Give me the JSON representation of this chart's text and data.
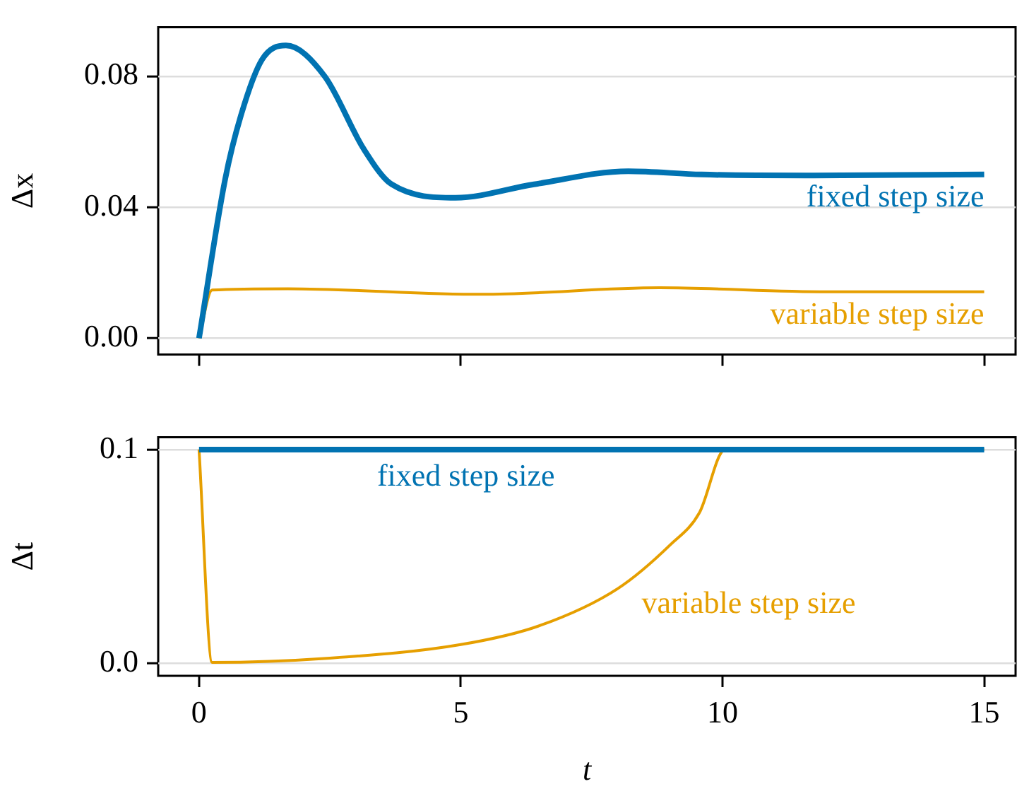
{
  "chart_data": [
    {
      "type": "line",
      "ylabel": "Δx",
      "xlim": [
        -0.78,
        15.6
      ],
      "ylim": [
        -0.005,
        0.095
      ],
      "xticks": [
        0,
        5,
        10,
        15
      ],
      "yticks": [
        {
          "value": 0,
          "label": "0.00"
        },
        {
          "value": 0.04,
          "label": "0.04"
        },
        {
          "value": 0.08,
          "label": "0.08"
        }
      ],
      "tick_labels": "y",
      "grid": "y",
      "legend": false,
      "marker": "none",
      "line_style": "solid",
      "series": [
        {
          "name": "fixed step size",
          "color": "#0173b2",
          "x": [
            0,
            0.5,
            0.8,
            1.2,
            1.66,
            2.4,
            3.15,
            3.68,
            4.9,
            6.4,
            8.2,
            9.6,
            11.6,
            15
          ],
          "values": [
            0,
            0.0486,
            0.068,
            0.085,
            0.0894,
            0.08,
            0.0577,
            0.047,
            0.0429,
            0.047,
            0.051,
            0.05,
            0.0497,
            0.05
          ]
        },
        {
          "name": "variable step size",
          "color": "#e69f00",
          "x": [
            0,
            0.25,
            1.7,
            5.4,
            8.8,
            12,
            15
          ],
          "values": [
            0,
            0.0147,
            0.0151,
            0.0134,
            0.0154,
            0.0142,
            0.0142
          ]
        }
      ]
    },
    {
      "type": "line",
      "xlabel": "t",
      "ylabel": "Δt",
      "xlim": [
        -0.78,
        15.6
      ],
      "ylim": [
        -0.0058,
        0.1058
      ],
      "xticks": [
        0,
        5,
        10,
        15
      ],
      "yticks": [
        {
          "value": 0,
          "label": "0.0"
        },
        {
          "value": 0.1,
          "label": "0.1"
        }
      ],
      "grid": "y",
      "legend": false,
      "marker": "none",
      "line_style": "solid",
      "series": [
        {
          "name": "fixed step size",
          "color": "#0173b2",
          "x": [
            0,
            15
          ],
          "values": [
            0.1,
            0.1
          ]
        },
        {
          "name": "variable step size",
          "color": "#e69f00",
          "x": [
            0,
            0.25,
            2.5,
            5,
            6.5,
            8,
            9,
            9.56,
            10.05,
            15
          ],
          "values": [
            0.1,
            0.0005,
            0.0025,
            0.0088,
            0.0176,
            0.035,
            0.0554,
            0.0705,
            0.1,
            0.1
          ]
        }
      ]
    }
  ]
}
